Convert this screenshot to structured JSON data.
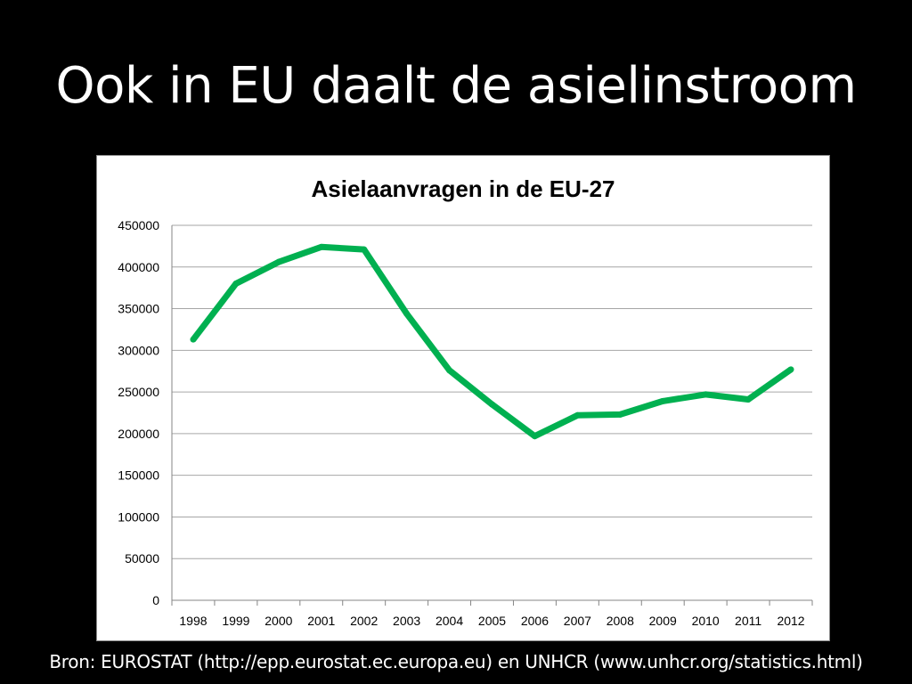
{
  "slide": {
    "title": "Ook in EU daalt de asielinstroom",
    "source": "Bron: EUROSTAT (http://epp.eurostat.ec.europa.eu) en UNHCR  (www.unhcr.org/statistics.html)"
  },
  "colors": {
    "background": "#000000",
    "text": "#ffffff",
    "chart_background": "#ffffff",
    "line": "#00b050",
    "grid": "#a6a6a6"
  },
  "chart_data": {
    "type": "line",
    "title": "Asielaanvragen in de EU-27",
    "xlabel": "",
    "ylabel": "",
    "categories": [
      "1998",
      "1999",
      "2000",
      "2001",
      "2002",
      "2003",
      "2004",
      "2005",
      "2006",
      "2007",
      "2008",
      "2009",
      "2010",
      "2011",
      "2012"
    ],
    "series": [
      {
        "values": [
          313000,
          380000,
          406000,
          424000,
          421000,
          344000,
          276000,
          235000,
          197000,
          222000,
          223000,
          239000,
          247000,
          241000,
          277000
        ]
      }
    ],
    "ylim": [
      0,
      450000
    ],
    "yticks": [
      "0",
      "50000",
      "100000",
      "150000",
      "200000",
      "250000",
      "300000",
      "350000",
      "400000",
      "450000"
    ],
    "grid": true,
    "legend": "none"
  }
}
